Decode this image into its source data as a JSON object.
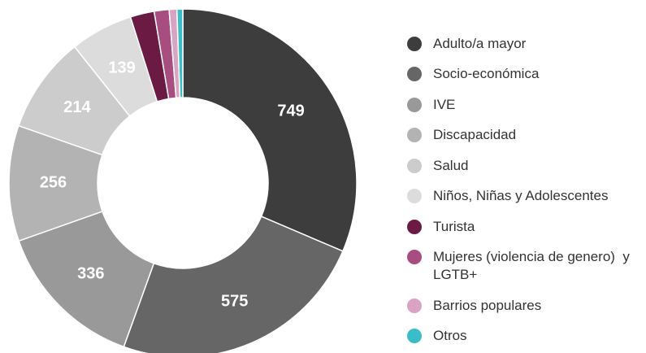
{
  "chart_data": {
    "type": "pie",
    "categories": [
      "Adulto/a mayor",
      "Socio-económica",
      "IVE",
      "Discapacidad",
      "Salud",
      "Niños, Niñas y Adolescentes",
      "Turista",
      "Mujeres (violencia de genero)  y LGTB+",
      "Barrios populares",
      "Otros"
    ],
    "values": [
      749,
      575,
      336,
      256,
      214,
      139,
      53,
      33,
      17,
      13
    ],
    "colors": [
      "#3d3d3d",
      "#666666",
      "#999999",
      "#b3b3b3",
      "#cccccc",
      "#dcdcdc",
      "#6b1a43",
      "#a84d7f",
      "#d9a3c4",
      "#3bbdc9"
    ]
  }
}
